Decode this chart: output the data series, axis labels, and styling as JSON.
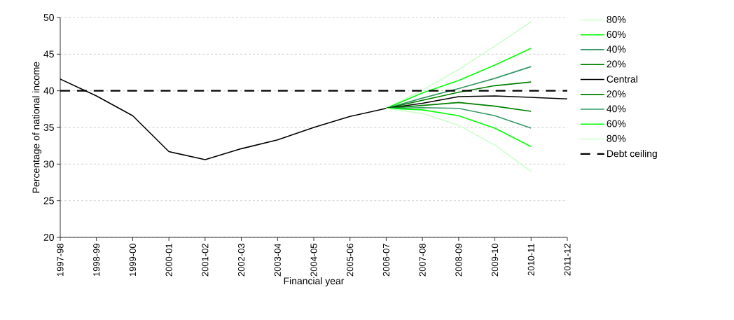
{
  "chart_data": {
    "type": "line",
    "xlabel": "Financial year",
    "ylabel": "Percentage of national income",
    "categories": [
      "1997-98",
      "1998-99",
      "1999-00",
      "2000-01",
      "2001-02",
      "2002-03",
      "2003-04",
      "2004-05",
      "2005-06",
      "2006-07",
      "2007-08",
      "2008-09",
      "2009-10",
      "2010-11",
      "2011-12"
    ],
    "ylim": [
      20,
      50
    ],
    "yticks": [
      20,
      25,
      30,
      35,
      40,
      45,
      50
    ],
    "grid": "y",
    "legend": "right",
    "marker": "none",
    "series": [
      {
        "name": "80%",
        "color": "#ccffcc",
        "values": [
          null,
          null,
          null,
          null,
          null,
          null,
          null,
          null,
          null,
          37.6,
          40.1,
          42.9,
          46.1,
          49.4,
          null
        ]
      },
      {
        "name": "60%",
        "color": "#00ff00",
        "values": [
          null,
          null,
          null,
          null,
          null,
          null,
          null,
          null,
          null,
          37.6,
          39.7,
          41.4,
          43.5,
          45.8,
          null
        ]
      },
      {
        "name": "40%",
        "color": "#339966",
        "values": [
          null,
          null,
          null,
          null,
          null,
          null,
          null,
          null,
          null,
          37.6,
          39.0,
          40.3,
          41.7,
          43.3,
          null
        ]
      },
      {
        "name": "20%",
        "color": "#008000",
        "values": [
          null,
          null,
          null,
          null,
          null,
          null,
          null,
          null,
          null,
          37.6,
          38.7,
          39.8,
          40.7,
          41.2,
          null
        ]
      },
      {
        "name": "Central",
        "color": "#000000",
        "values": [
          41.6,
          39.3,
          36.6,
          31.7,
          30.6,
          32.1,
          33.3,
          35.0,
          36.5,
          37.6,
          38.3,
          39.2,
          39.3,
          39.1,
          38.9
        ]
      },
      {
        "name": "20%",
        "color": "#008000",
        "values": [
          null,
          null,
          null,
          null,
          null,
          null,
          null,
          null,
          null,
          37.6,
          38.0,
          38.4,
          37.9,
          37.2,
          null
        ]
      },
      {
        "name": "40%",
        "color": "#339966",
        "values": [
          null,
          null,
          null,
          null,
          null,
          null,
          null,
          null,
          null,
          37.6,
          37.7,
          37.6,
          36.6,
          34.9,
          null
        ]
      },
      {
        "name": "60%",
        "color": "#00ff00",
        "values": [
          null,
          null,
          null,
          null,
          null,
          null,
          null,
          null,
          null,
          37.6,
          37.4,
          36.6,
          34.9,
          32.4,
          null
        ]
      },
      {
        "name": "80%",
        "color": "#ccffcc",
        "values": [
          null,
          null,
          null,
          null,
          null,
          null,
          null,
          null,
          null,
          37.6,
          36.9,
          35.3,
          32.6,
          29.0,
          null
        ]
      },
      {
        "name": "Debt ceiling",
        "color": "#000000",
        "line_style": "dashed",
        "values": [
          40,
          40,
          40,
          40,
          40,
          40,
          40,
          40,
          40,
          40,
          40,
          40,
          40,
          40,
          40
        ]
      }
    ]
  }
}
